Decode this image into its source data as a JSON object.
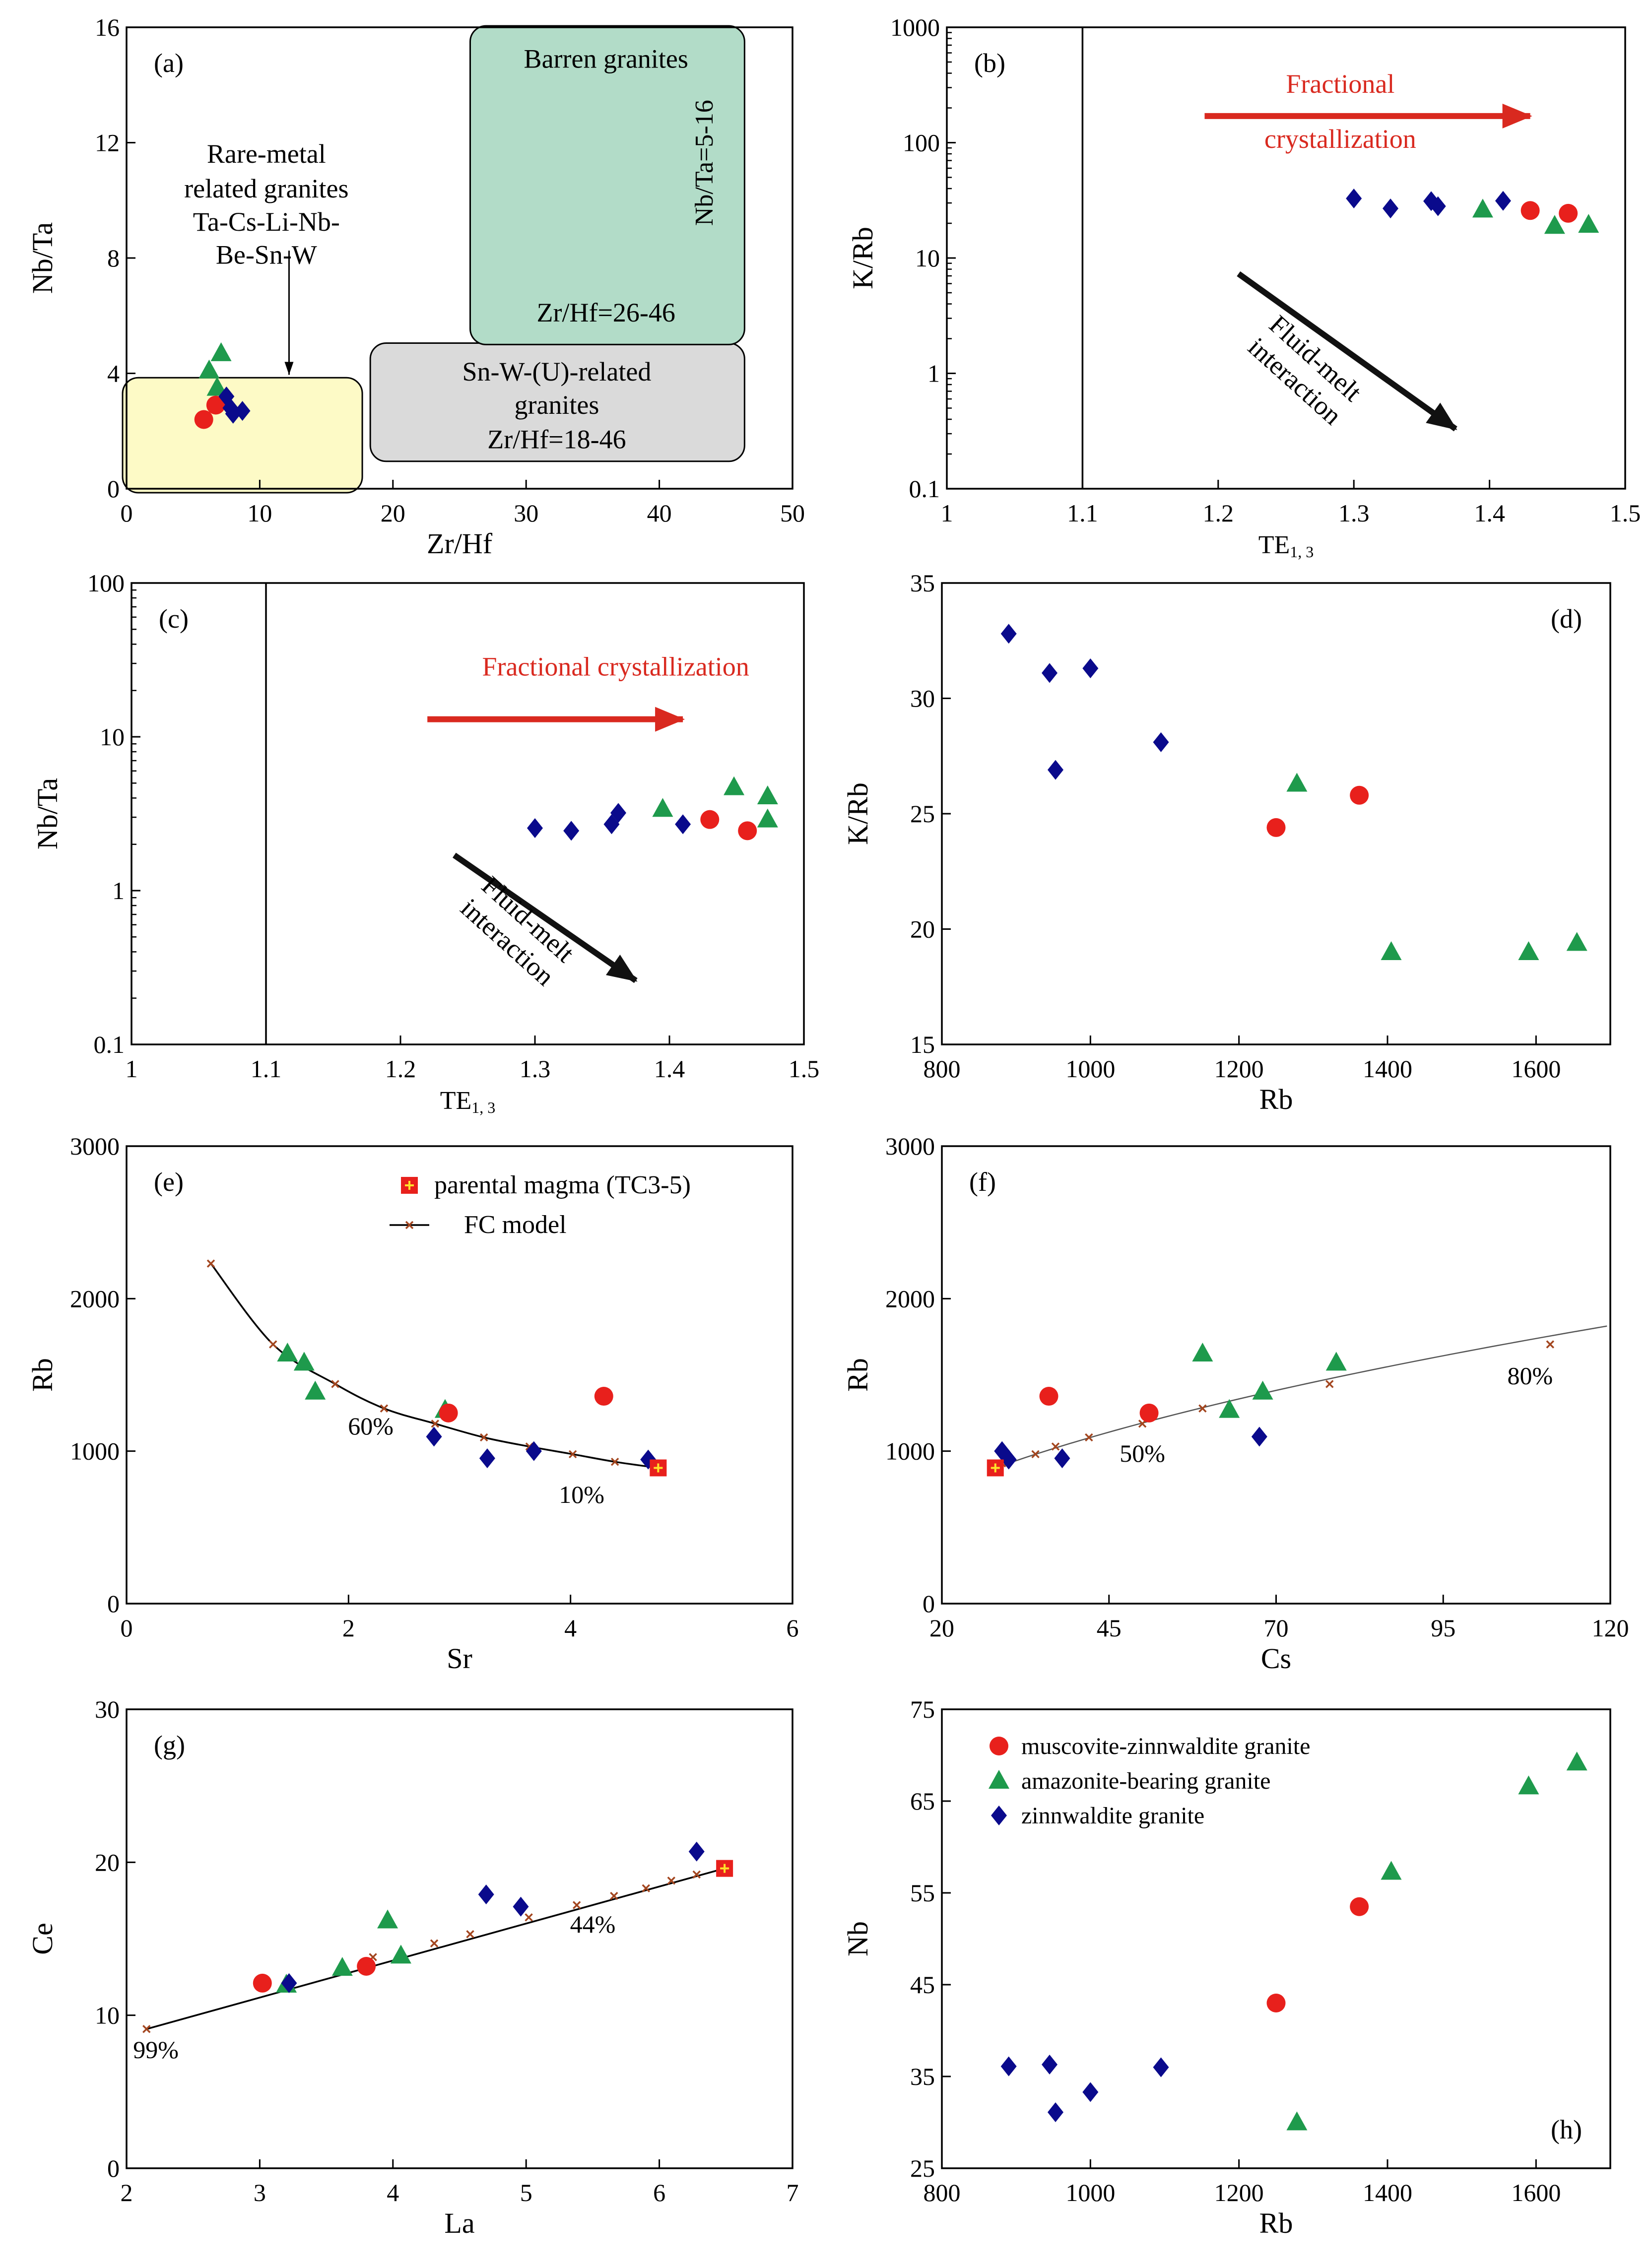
{
  "colors": {
    "muscovite": "#e8201c",
    "amazonite": "#1e9a4c",
    "zinnwaldite": "#0a0a8c",
    "arrow_red": "#d9291f",
    "arrow_black": "#111111",
    "barren_fill": "#b2dcc8",
    "snw_fill": "#dadada",
    "raremetal_fill": "#fdfac6",
    "model_line": "#000000",
    "model_mark": "#a3461f",
    "parental": "#e8201c"
  },
  "legend": {
    "series": [
      {
        "key": "muscovite",
        "label": "muscovite-zinnwaldite granite",
        "marker": "circle"
      },
      {
        "key": "amazonite",
        "label": "amazonite-bearing granite",
        "marker": "triangle"
      },
      {
        "key": "zinnwaldite",
        "label": "zinnwaldite granite",
        "marker": "diamond"
      }
    ],
    "parental": "parental magma (TC3-5)",
    "fc_model": "FC model"
  },
  "chart_data": [
    {
      "id": "a",
      "panel_label": "(a)",
      "type": "scatter",
      "xlabel": "Zr/Hf",
      "ylabel": "Nb/Ta",
      "xlim": [
        0,
        50
      ],
      "ylim": [
        0,
        16
      ],
      "xticks": [
        "0",
        "10",
        "20",
        "30",
        "40",
        "50"
      ],
      "yticks": [
        "0",
        "4",
        "8",
        "12",
        "16"
      ],
      "series": {
        "muscovite": {
          "x": [
            5.8,
            6.7
          ],
          "y": [
            2.4,
            2.9
          ]
        },
        "amazonite": {
          "x": [
            6.2,
            6.8,
            7.1
          ],
          "y": [
            4.1,
            3.5,
            4.7
          ]
        },
        "zinnwaldite": {
          "x": [
            7.5,
            7.8,
            8.0,
            8.7
          ],
          "y": [
            3.2,
            2.8,
            2.6,
            2.7
          ]
        }
      },
      "regions": [
        {
          "name": "barren",
          "lines": [
            "Barren granites",
            "Nb/Ta=5-16",
            "Zr/Hf=26-46"
          ]
        },
        {
          "name": "snw",
          "lines": [
            "Sn-W-(U)-related",
            "granites",
            "Zr/Hf=18-46"
          ]
        },
        {
          "name": "raremetal",
          "lines": [
            "Rare-metal",
            "related granites",
            "Ta-Cs-Li-Nb-",
            "Be-Sn-W"
          ]
        }
      ]
    },
    {
      "id": "b",
      "panel_label": "(b)",
      "type": "scatter",
      "xlabel_main": "TE",
      "xlabel_sub": "1, 3",
      "ylabel": "K/Rb",
      "xlim": [
        1,
        1.5
      ],
      "ylim": [
        0.1,
        1000
      ],
      "yscale": "log",
      "xticks": [
        "1",
        "1.1",
        "1.2",
        "1.3",
        "1.4",
        "1.5"
      ],
      "yticks": [
        "0.1",
        "1",
        "10",
        "100",
        "1000"
      ],
      "vline": 1.1,
      "series": {
        "muscovite": {
          "x": [
            1.43,
            1.458
          ],
          "y": [
            25.8,
            24.4
          ]
        },
        "amazonite": {
          "x": [
            1.395,
            1.448,
            1.473
          ],
          "y": [
            26.3,
            19.0,
            19.4
          ]
        },
        "zinnwaldite": {
          "x": [
            1.3,
            1.327,
            1.357,
            1.362,
            1.41
          ],
          "y": [
            32.8,
            26.9,
            31.1,
            28.1,
            31.3
          ]
        }
      },
      "arrows": [
        {
          "name": "fc",
          "label_lines": [
            "Fractional",
            "crystallization"
          ]
        },
        {
          "name": "fluid",
          "label_lines": [
            "Fluid-melt",
            "interaction"
          ]
        }
      ]
    },
    {
      "id": "c",
      "panel_label": "(c)",
      "type": "scatter",
      "xlabel_main": "TE",
      "xlabel_sub": "1, 3",
      "ylabel": "Nb/Ta",
      "xlim": [
        1,
        1.5
      ],
      "ylim": [
        0.1,
        100
      ],
      "yscale": "log",
      "xticks": [
        "1",
        "1.1",
        "1.2",
        "1.3",
        "1.4",
        "1.5"
      ],
      "yticks": [
        "0.1",
        "1",
        "10",
        "100"
      ],
      "vline": 1.1,
      "series": {
        "muscovite": {
          "x": [
            1.43,
            1.458
          ],
          "y": [
            2.9,
            2.45
          ]
        },
        "amazonite": {
          "x": [
            1.395,
            1.448,
            1.473,
            1.473
          ],
          "y": [
            3.4,
            4.7,
            4.1,
            2.9
          ]
        },
        "zinnwaldite": {
          "x": [
            1.3,
            1.327,
            1.357,
            1.362,
            1.41
          ],
          "y": [
            2.55,
            2.45,
            2.7,
            3.2,
            2.7
          ]
        }
      },
      "arrows": [
        {
          "name": "fc",
          "label_lines": [
            "Fractional crystallization"
          ]
        },
        {
          "name": "fluid",
          "label_lines": [
            "Fluid-melt",
            "interaction"
          ]
        }
      ]
    },
    {
      "id": "d",
      "panel_label": "(d)",
      "type": "scatter",
      "xlabel": "Rb",
      "ylabel": "K/Rb",
      "xlim": [
        800,
        1700
      ],
      "ylim": [
        15,
        35
      ],
      "xticks": [
        "800",
        "1000",
        "1200",
        "1400",
        "1600"
      ],
      "yticks": [
        "15",
        "20",
        "25",
        "30",
        "35"
      ],
      "series": {
        "muscovite": {
          "x": [
            1250,
            1362
          ],
          "y": [
            24.4,
            25.8
          ]
        },
        "amazonite": {
          "x": [
            1278,
            1405,
            1590,
            1655
          ],
          "y": [
            26.3,
            19.0,
            19.0,
            19.4
          ]
        },
        "zinnwaldite": {
          "x": [
            890,
            945,
            953,
            1000,
            1095
          ],
          "y": [
            32.8,
            31.1,
            26.9,
            31.3,
            28.1
          ]
        }
      }
    },
    {
      "id": "e",
      "panel_label": "(e)",
      "type": "scatter",
      "xlabel": "Sr",
      "ylabel": "Rb",
      "xlim": [
        0,
        6
      ],
      "ylim": [
        0,
        3000
      ],
      "xticks": [
        "0",
        "2",
        "4",
        "6"
      ],
      "yticks": [
        "0",
        "1000",
        "2000",
        "3000"
      ],
      "series": {
        "muscovite": {
          "x": [
            2.9,
            4.3
          ],
          "y": [
            1250,
            1360
          ]
        },
        "amazonite": {
          "x": [
            1.45,
            1.6,
            1.7,
            2.87
          ],
          "y": [
            1640,
            1580,
            1390,
            1270
          ]
        },
        "zinnwaldite": {
          "x": [
            2.77,
            3.25,
            3.67,
            4.7
          ],
          "y": [
            1095,
            953,
            1000,
            945
          ]
        }
      },
      "fc_model": {
        "x": [
          0.76,
          1.32,
          1.88,
          2.32,
          2.78,
          3.22,
          3.63,
          4.02,
          4.4,
          4.79
        ],
        "y": [
          2230,
          1700,
          1440,
          1280,
          1180,
          1090,
          1030,
          980,
          930,
          890
        ]
      },
      "parental": {
        "x": 4.79,
        "y": 890
      },
      "annotations": [
        {
          "text": "60%",
          "x": 2.2,
          "y": 1110
        },
        {
          "text": "10%",
          "x": 4.1,
          "y": 660
        }
      ]
    },
    {
      "id": "f",
      "panel_label": "(f)",
      "type": "scatter",
      "xlabel": "Cs",
      "ylabel": "Rb",
      "xlim": [
        20,
        120
      ],
      "ylim": [
        0,
        3000
      ],
      "xticks": [
        "20",
        "45",
        "70",
        "95",
        "120"
      ],
      "yticks": [
        "0",
        "1000",
        "2000",
        "3000"
      ],
      "series": {
        "muscovite": {
          "x": [
            36,
            51
          ],
          "y": [
            1360,
            1250
          ]
        },
        "amazonite": {
          "x": [
            59,
            63,
            68,
            79
          ],
          "y": [
            1640,
            1270,
            1390,
            1580
          ]
        },
        "zinnwaldite": {
          "x": [
            29,
            30,
            38,
            67.5
          ],
          "y": [
            1000,
            945,
            953,
            1095
          ]
        }
      },
      "fc_model": {
        "x": [
          28,
          29,
          34,
          37,
          42,
          50,
          59,
          78,
          111
        ],
        "y": [
          890,
          920,
          980,
          1030,
          1090,
          1180,
          1280,
          1440,
          1700
        ]
      },
      "fc_curve_extent": [
        28,
        120
      ],
      "parental": {
        "x": 28,
        "y": 890
      },
      "annotations": [
        {
          "text": "50%",
          "x": 50,
          "y": 930
        },
        {
          "text": "80%",
          "x": 108,
          "y": 1440
        }
      ]
    },
    {
      "id": "g",
      "panel_label": "(g)",
      "type": "scatter",
      "xlabel": "La",
      "ylabel": "Ce",
      "xlim": [
        2,
        7
      ],
      "ylim": [
        0,
        30
      ],
      "xticks": [
        "2",
        "3",
        "4",
        "5",
        "6",
        "7"
      ],
      "yticks": [
        "0",
        "10",
        "20",
        "30"
      ],
      "series": {
        "muscovite": {
          "x": [
            3.02,
            3.8
          ],
          "y": [
            12.1,
            13.2
          ]
        },
        "amazonite": {
          "x": [
            3.2,
            3.62,
            3.96,
            4.06
          ],
          "y": [
            12.0,
            13.1,
            16.2,
            13.9
          ]
        },
        "zinnwaldite": {
          "x": [
            3.22,
            4.7,
            4.96,
            6.28
          ],
          "y": [
            12.1,
            17.9,
            17.1,
            20.7
          ]
        }
      },
      "fc_model": {
        "x": [
          2.15,
          3.85,
          4.31,
          4.58,
          5.02,
          5.38,
          5.66,
          5.9,
          6.09,
          6.28,
          6.49
        ],
        "y": [
          9.1,
          13.8,
          14.7,
          15.3,
          16.4,
          17.2,
          17.8,
          18.3,
          18.8,
          19.2,
          19.6
        ]
      },
      "parental": {
        "x": 6.49,
        "y": 19.6
      },
      "annotations": [
        {
          "text": "99%",
          "x": 2.22,
          "y": 7.2
        },
        {
          "text": "44%",
          "x": 5.5,
          "y": 15.4
        }
      ]
    },
    {
      "id": "h",
      "panel_label": "(h)",
      "type": "scatter",
      "xlabel": "Rb",
      "ylabel": "Nb",
      "xlim": [
        800,
        1700
      ],
      "ylim": [
        25,
        75
      ],
      "xticks": [
        "800",
        "1000",
        "1200",
        "1400",
        "1600"
      ],
      "yticks": [
        "25",
        "35",
        "45",
        "55",
        "65",
        "75"
      ],
      "series": {
        "muscovite": {
          "x": [
            1250,
            1362
          ],
          "y": [
            43.0,
            53.5
          ]
        },
        "amazonite": {
          "x": [
            1278,
            1405,
            1590,
            1655
          ],
          "y": [
            30.0,
            57.3,
            66.6,
            69.2
          ]
        },
        "zinnwaldite": {
          "x": [
            890,
            945,
            953,
            1000,
            1095
          ],
          "y": [
            36.1,
            36.3,
            31.1,
            33.3,
            36.0
          ]
        }
      }
    }
  ]
}
